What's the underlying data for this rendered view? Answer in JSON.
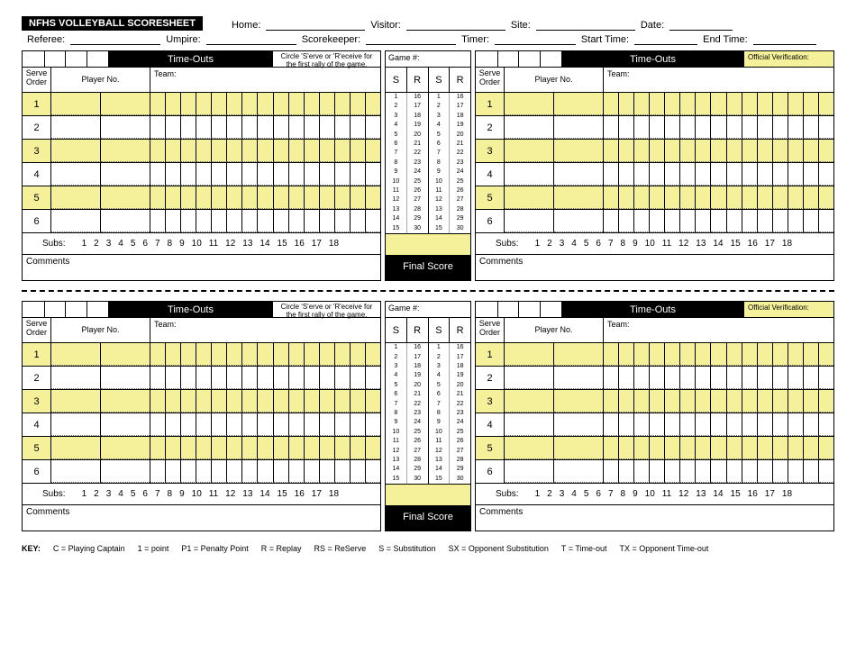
{
  "title": "NFHS VOLLEYBALL SCORESHEET",
  "header_fields": {
    "home": "Home:",
    "visitor": "Visitor:",
    "site": "Site:",
    "date": "Date:",
    "referee": "Referee:",
    "umpire": "Umpire:",
    "scorekeeper": "Scorekeeper:",
    "timer": "Timer:",
    "start_time": "Start Time:",
    "end_time": "End Time:"
  },
  "labels": {
    "time_outs": "Time-Outs",
    "circle_note": "Circle 'S'erve or 'R'eceive for the first rally of the game.",
    "game_no": "Game #:",
    "verification": "Official Verification:",
    "serve_order": "Serve Order",
    "player_no": "Player No.",
    "team": "Team:",
    "S": "S",
    "R": "R",
    "subs": "Subs:",
    "subs_nums": [
      "1",
      "2",
      "3",
      "4",
      "5",
      "6",
      "7",
      "8",
      "9",
      "10",
      "11",
      "12",
      "13",
      "14",
      "15",
      "16",
      "17",
      "18"
    ],
    "comments": "Comments",
    "final_score": "Final Score",
    "key_header": "KEY:",
    "keys": [
      "C = Playing Captain",
      "1 = point",
      "P1 = Penalty Point",
      "R = Replay",
      "RS = ReServe",
      "S = Substitution",
      "SX = Opponent Substitution",
      "T = Time-out",
      "TX = Opponent Time-out"
    ]
  },
  "roster_rows": [
    "1",
    "2",
    "3",
    "4",
    "5",
    "6"
  ],
  "score_nums_a": [
    "1",
    "2",
    "3",
    "4",
    "5",
    "6",
    "7",
    "8",
    "9",
    "10",
    "11",
    "12",
    "13",
    "14",
    "15"
  ],
  "score_nums_b": [
    "16",
    "17",
    "18",
    "19",
    "20",
    "21",
    "22",
    "23",
    "24",
    "25",
    "26",
    "27",
    "28",
    "29",
    "30"
  ],
  "colors": {
    "highlight": "#f5f09a",
    "black": "#000000"
  },
  "point_cells": 15,
  "timeout_cells": 4
}
